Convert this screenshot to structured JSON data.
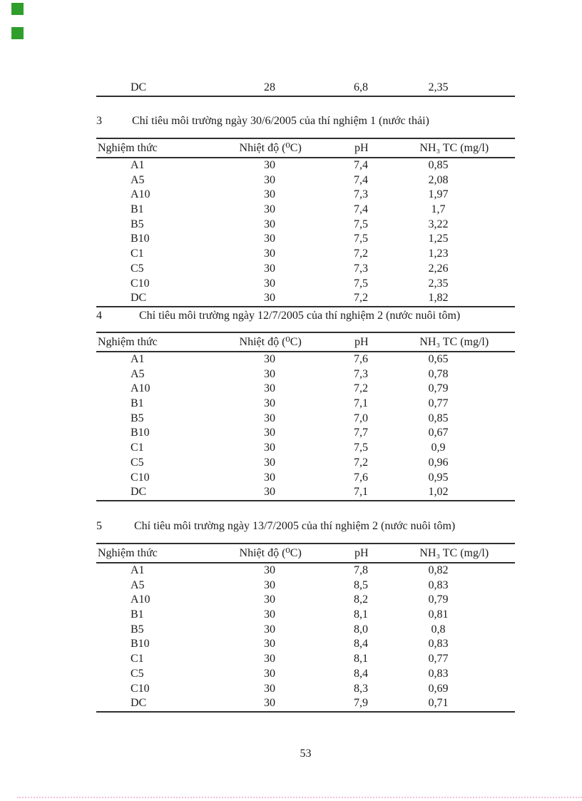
{
  "page_number": "53",
  "accent_colors": {
    "marker_green": "#2f9e2b",
    "footer_dots_pink": "#f6bedb",
    "rule_dark": "#2f2f2f"
  },
  "columns": [
    "Nghiệm thức",
    "Nhiệt độ (⁰C)",
    "pH",
    "NH₃ TC (mg/l)"
  ],
  "partial_table": {
    "row": [
      "DC",
      "28",
      "6,8",
      "2,35"
    ]
  },
  "sections": [
    {
      "number": "3",
      "title": "Chỉ tiêu môi trường  ngày 30/6/2005 của thí nghiệm 1 (nước thải)",
      "rows": [
        [
          "A1",
          "30",
          "7,4",
          "0,85"
        ],
        [
          "A5",
          "30",
          "7,4",
          "2,08"
        ],
        [
          "A10",
          "30",
          "7,3",
          "1,97"
        ],
        [
          "B1",
          "30",
          "7,4",
          "1,7"
        ],
        [
          "B5",
          "30",
          "7,5",
          "3,22"
        ],
        [
          "B10",
          "30",
          "7,5",
          "1,25"
        ],
        [
          "C1",
          "30",
          "7,2",
          "1,23"
        ],
        [
          "C5",
          "30",
          "7,3",
          "2,26"
        ],
        [
          "C10",
          "30",
          "7,5",
          "2,35"
        ],
        [
          "DC",
          "30",
          "7,2",
          "1,82"
        ]
      ]
    },
    {
      "number": "4",
      "title": "Chỉ tiêu môi trường  ngày 12/7/2005 của thí nghiệm 2 (nước nuôi tôm)",
      "rows": [
        [
          "A1",
          "30",
          "7,6",
          "0,65"
        ],
        [
          "A5",
          "30",
          "7,3",
          "0,78"
        ],
        [
          "A10",
          "30",
          "7,2",
          "0,79"
        ],
        [
          "B1",
          "30",
          "7,1",
          "0,77"
        ],
        [
          "B5",
          "30",
          "7,0",
          "0,85"
        ],
        [
          "B10",
          "30",
          "7,7",
          "0,67"
        ],
        [
          "C1",
          "30",
          "7,5",
          "0,9"
        ],
        [
          "C5",
          "30",
          "7,2",
          "0,96"
        ],
        [
          "C10",
          "30",
          "7,6",
          "0,95"
        ],
        [
          "DC",
          "30",
          "7,1",
          "1,02"
        ]
      ]
    },
    {
      "number": "5",
      "title": "Chỉ tiêu môi trường  ngày 13/7/2005 của thí nghiệm 2 (nước nuôi tôm)",
      "rows": [
        [
          "A1",
          "30",
          "7,8",
          "0,82"
        ],
        [
          "A5",
          "30",
          "8,5",
          "0,83"
        ],
        [
          "A10",
          "30",
          "8,2",
          "0,79"
        ],
        [
          "B1",
          "30",
          "8,1",
          "0,81"
        ],
        [
          "B5",
          "30",
          "8,0",
          "0,8"
        ],
        [
          "B10",
          "30",
          "8,4",
          "0,83"
        ],
        [
          "C1",
          "30",
          "8,1",
          "0,77"
        ],
        [
          "C5",
          "30",
          "8,4",
          "0,83"
        ],
        [
          "C10",
          "30",
          "8,3",
          "0,69"
        ],
        [
          "DC",
          "30",
          "7,9",
          "0,71"
        ]
      ]
    }
  ]
}
